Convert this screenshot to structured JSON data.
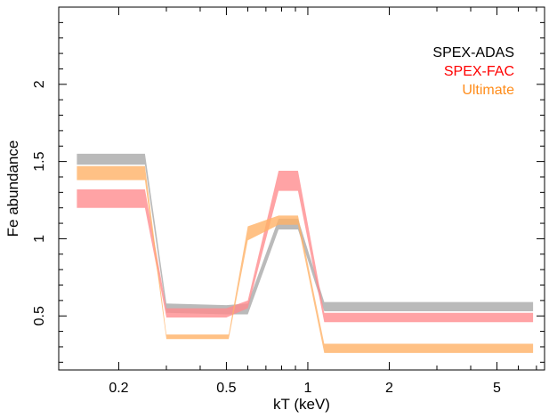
{
  "chart_data": {
    "type": "area",
    "xlabel": "kT (keV)",
    "ylabel": "Fe abundance",
    "xscale": "log",
    "xlim": [
      0.12,
      7.5
    ],
    "ylim": [
      0.15,
      2.5
    ],
    "xticks": [
      0.2,
      0.5,
      1,
      2,
      5
    ],
    "xtick_labels": [
      "0.2",
      "0.5",
      "1",
      "2",
      "5"
    ],
    "yticks": [
      0.5,
      1,
      1.5,
      2
    ],
    "ytick_labels": [
      "0.5",
      "1",
      "1.5",
      "2"
    ],
    "legend_position": "top-right",
    "series": [
      {
        "name": "SPEX-ADAS",
        "color": "#a9a9a9",
        "x": [
          0.14,
          0.25,
          0.3,
          0.5,
          0.6,
          0.78,
          0.92,
          1.15,
          6.8
        ],
        "lower": [
          1.48,
          1.48,
          0.52,
          0.51,
          0.51,
          1.06,
          1.06,
          0.53,
          0.53
        ],
        "upper": [
          1.55,
          1.55,
          0.58,
          0.57,
          0.58,
          1.13,
          1.13,
          0.59,
          0.59
        ]
      },
      {
        "name": "SPEX-FAC",
        "color": "#ff8c8f",
        "x": [
          0.14,
          0.25,
          0.3,
          0.5,
          0.6,
          0.78,
          0.92,
          1.15,
          6.8
        ],
        "lower": [
          1.2,
          1.2,
          0.49,
          0.49,
          0.55,
          1.31,
          1.31,
          0.46,
          0.46
        ],
        "upper": [
          1.32,
          1.32,
          0.55,
          0.55,
          0.6,
          1.44,
          1.44,
          0.52,
          0.52
        ]
      },
      {
        "name": "Ultimate",
        "color": "#ffb266",
        "x": [
          0.14,
          0.25,
          0.3,
          0.51,
          0.6,
          0.78,
          0.92,
          1.15,
          6.8
        ],
        "lower": [
          1.38,
          1.38,
          0.35,
          0.35,
          0.99,
          1.09,
          1.09,
          0.26,
          0.26
        ],
        "upper": [
          1.47,
          1.47,
          0.38,
          0.38,
          1.08,
          1.15,
          1.15,
          0.32,
          0.32
        ]
      }
    ]
  }
}
